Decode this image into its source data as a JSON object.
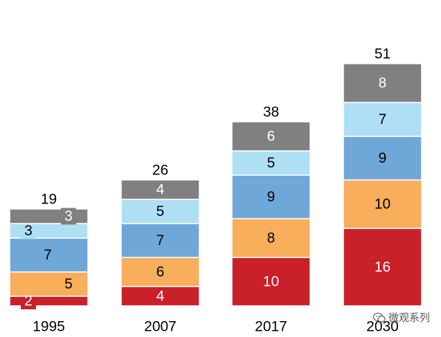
{
  "chart_data": {
    "type": "bar",
    "stacked": true,
    "title": "",
    "xlabel": "",
    "ylabel": "",
    "ylim": [
      0,
      55
    ],
    "grid": false,
    "legend": "none",
    "categories": [
      "1995",
      "2007",
      "2017",
      "2030"
    ],
    "totals": [
      19,
      26,
      38,
      51
    ],
    "series": [
      {
        "name": "series-1",
        "color": "#C9202A",
        "label_color": "#ffffff",
        "values": [
          2,
          4,
          10,
          16
        ]
      },
      {
        "name": "series-2",
        "color": "#F8AE5A",
        "label_color": "#000000",
        "values": [
          5,
          6,
          8,
          10
        ]
      },
      {
        "name": "series-3",
        "color": "#6FA8D8",
        "label_color": "#000000",
        "values": [
          7,
          7,
          9,
          9
        ]
      },
      {
        "name": "series-4",
        "color": "#AEDFF5",
        "label_color": "#000000",
        "values": [
          3,
          5,
          5,
          7
        ]
      },
      {
        "name": "series-5",
        "color": "#808080",
        "label_color": "#ffffff",
        "values": [
          3,
          4,
          6,
          8
        ]
      }
    ]
  },
  "watermark": {
    "text": "微观系列",
    "icon": "chat-bubble-icon"
  }
}
